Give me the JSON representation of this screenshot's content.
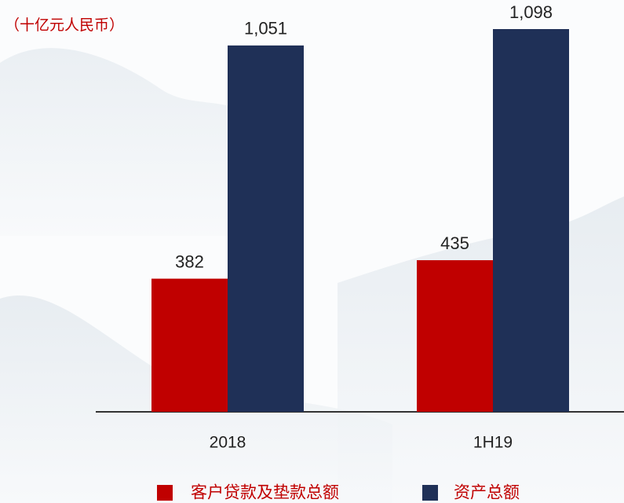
{
  "chart_data": {
    "type": "bar",
    "annotation": "（十亿元人民币）",
    "categories": [
      "2018",
      "1H19"
    ],
    "series": [
      {
        "name": "客户贷款及垫款总额",
        "color": "#c00000",
        "values": [
          382,
          435
        ]
      },
      {
        "name": "资产总额",
        "color": "#1f3057",
        "values": [
          1051,
          1098
        ],
        "value_labels": [
          "1,051",
          "1,098"
        ]
      }
    ]
  }
}
